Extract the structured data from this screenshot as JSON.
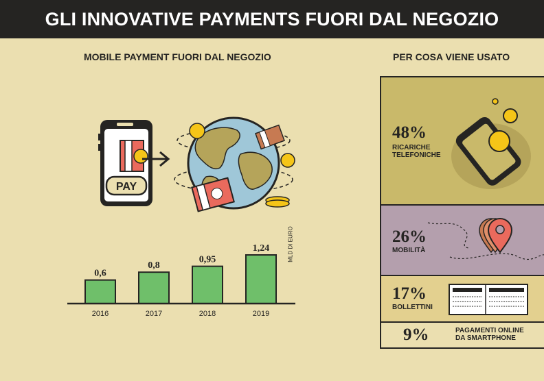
{
  "header": {
    "title": "GLI INNOVATIVE PAYMENTS FUORI DAL NEGOZIO"
  },
  "left": {
    "title": "MOBILE PAYMENT FUORI DAL NEGOZIO",
    "pay_label": "PAY",
    "unit_label": "MLD DI EURO"
  },
  "right": {
    "title": "PER COSA VIENE USATO",
    "items": [
      {
        "percent": "48%",
        "label_line1": "RICARICHE",
        "label_line2": "TELEFONICHE",
        "icon": "phone-coins-icon"
      },
      {
        "percent": "26%",
        "label_line1": "MOBILITÀ",
        "label_line2": "",
        "icon": "map-pin-icon"
      },
      {
        "percent": "17%",
        "label_line1": "BOLLETTINI",
        "label_line2": "",
        "icon": "payment-slip-icon"
      },
      {
        "percent": "9%",
        "label_line1": "PAGAMENTI ONLINE",
        "label_line2": "DA SMARTPHONE",
        "icon": ""
      }
    ]
  },
  "chart_data": {
    "type": "bar",
    "title": "MOBILE PAYMENT FUORI DAL NEGOZIO",
    "categories": [
      "2016",
      "2017",
      "2018",
      "2019"
    ],
    "values": [
      0.6,
      0.8,
      0.95,
      1.24
    ],
    "value_labels": [
      "0,6",
      "0,8",
      "0,95",
      "1,24"
    ],
    "ylabel": "MLD DI EURO",
    "ylim": [
      0,
      1.24
    ],
    "grid": false,
    "bar_color": "#6fbf6a"
  },
  "colors": {
    "background": "#ebdfb0",
    "title_bar": "#252422",
    "panel_1": "#c9b96a",
    "panel_2": "#b49fad",
    "panel_3": "#e3d08f",
    "accent_red": "#ea6a5d",
    "coin_yellow": "#f5c518"
  }
}
